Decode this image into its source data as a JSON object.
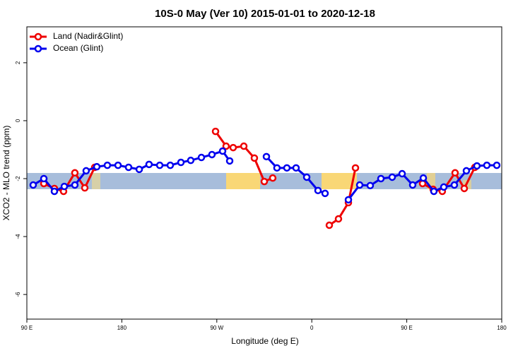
{
  "chart_data": {
    "type": "line",
    "title": "10S-0 May (Ver 10)   2015-01-01 to 2020-12-18",
    "x_label": "Longitude (deg E)",
    "y_label": "XCO2 - MLO trend (ppm)",
    "xlim": [
      90,
      540
    ],
    "ylim": [
      -6.85,
      3.24
    ],
    "xticks": [
      {
        "value": 90,
        "label": "90 E"
      },
      180,
      {
        "value": 270,
        "label": "90 W"
      },
      {
        "value": 360,
        "label": "0"
      },
      {
        "value": 450,
        "label": "90 E"
      },
      {
        "value": 540,
        "label": "180"
      }
    ],
    "yticks": [
      -6,
      -4,
      -2,
      0,
      2
    ],
    "legend": "top-left",
    "series": [
      {
        "name": "Land (Nadir&Glint)",
        "color": "#ee0000",
        "x": [
          106.1,
          116.1,
          124.8,
          135.5,
          144.9,
          154.3,
          null,
          268.8,
          278.8,
          285.5,
          295.6,
          305.6,
          315.0,
          323.0,
          null,
          376.6,
          385.3,
          394.7,
          401.4,
          null,
          465.0,
          475.0,
          483.7,
          495.8,
          504.5,
          514.5
        ],
        "values": [
          -2.17,
          -2.34,
          -2.44,
          -1.8,
          -2.32,
          -1.61,
          null,
          -0.37,
          -0.88,
          -0.93,
          -0.88,
          -1.29,
          -2.1,
          -1.98,
          null,
          -3.61,
          -3.39,
          -2.83,
          -1.63,
          null,
          -2.17,
          -2.37,
          -2.44,
          -1.8,
          -2.34,
          -1.61
        ]
      },
      {
        "name": "Ocean (Glint)",
        "color": "#0000ee",
        "x": [
          96.0,
          106.1,
          116.1,
          125.5,
          135.5,
          146.2,
          156.3,
          166.3,
          176.4,
          186.4,
          196.5,
          205.8,
          215.9,
          225.9,
          236.0,
          245.3,
          255.4,
          265.4,
          275.5,
          282.2,
          null,
          317.0,
          327.0,
          336.4,
          345.1,
          355.2,
          365.9,
          372.6,
          null,
          394.7,
          405.4,
          415.4,
          425.5,
          436.2,
          445.6,
          455.6,
          465.7,
          475.7,
          485.1,
          495.1,
          506.5,
          516.5,
          525.9,
          535.3
        ],
        "values": [
          -2.22,
          -2.0,
          -2.44,
          -2.27,
          -2.22,
          -1.73,
          -1.59,
          -1.54,
          -1.54,
          -1.61,
          -1.68,
          -1.51,
          -1.54,
          -1.54,
          -1.44,
          -1.37,
          -1.27,
          -1.17,
          -1.05,
          -1.39,
          null,
          -1.24,
          -1.63,
          -1.63,
          -1.63,
          -1.95,
          -2.41,
          -2.51,
          null,
          -2.73,
          -2.22,
          -2.24,
          -2.0,
          -1.95,
          -1.83,
          -2.22,
          -1.98,
          -2.44,
          -2.29,
          -2.22,
          -1.73,
          -1.56,
          -1.54,
          -1.54
        ]
      }
    ]
  }
}
